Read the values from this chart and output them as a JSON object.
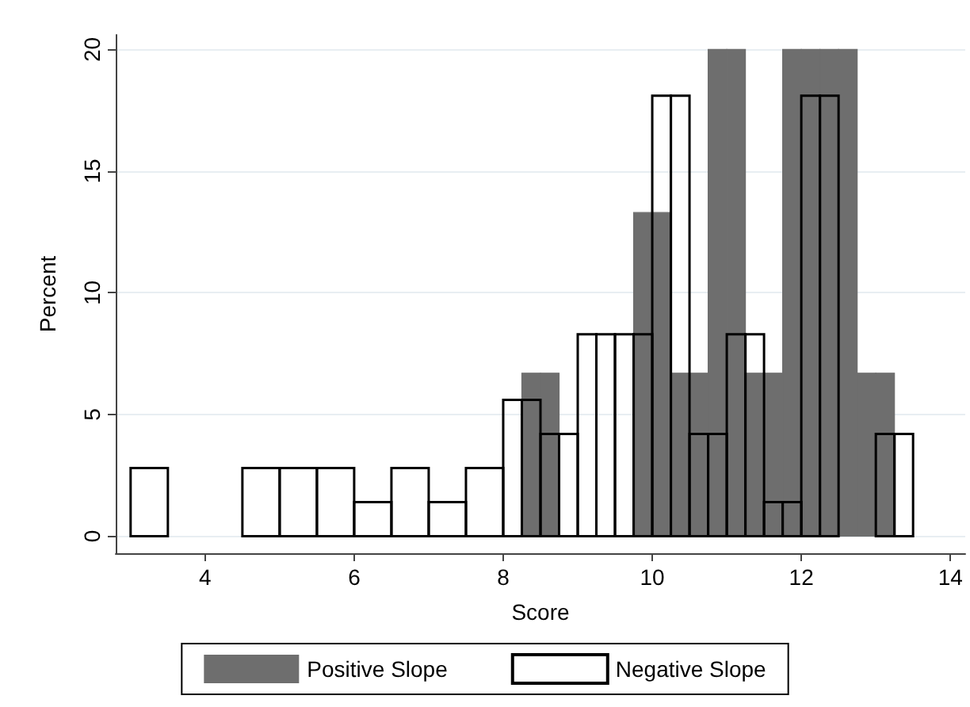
{
  "chart_data": {
    "type": "histogram",
    "xlabel": "Score",
    "ylabel": "Percent",
    "xlim": [
      2.8,
      14.2
    ],
    "xticks": [
      4,
      6,
      8,
      10,
      12,
      14
    ],
    "ylim": [
      -0.7,
      20.6
    ],
    "yticks": [
      0,
      5,
      10,
      15,
      20
    ],
    "grid": "y",
    "legend": "bottom",
    "bins": [
      3,
      3.5,
      4.5,
      5,
      5.5,
      6,
      6.5,
      7,
      7.5,
      8,
      8.25,
      8.5,
      8.75,
      9,
      9.25,
      9.5,
      9.75,
      10,
      10.25,
      10.5,
      10.75,
      11,
      11.25,
      11.5,
      11.75,
      12,
      12.25,
      12.5,
      12.75,
      13,
      13.25,
      13.5
    ],
    "series": [
      {
        "name": "Positive Slope",
        "color": "#6e6e6e",
        "values": [
          null,
          null,
          null,
          null,
          null,
          null,
          null,
          null,
          null,
          null,
          6.7,
          6.7,
          0,
          0,
          0,
          0,
          13.3,
          13.3,
          6.7,
          6.7,
          20,
          20,
          6.7,
          6.7,
          20,
          20,
          20,
          20,
          6.7,
          6.7,
          null
        ]
      },
      {
        "name": "Negative Slope",
        "color": "#000000",
        "values": [
          2.8,
          0,
          2.8,
          2.8,
          2.8,
          1.4,
          2.8,
          1.4,
          2.8,
          5.6,
          5.6,
          4.2,
          4.2,
          8.3,
          8.3,
          8.3,
          8.3,
          18.1,
          18.1,
          4.2,
          4.2,
          8.3,
          8.3,
          1.4,
          1.4,
          18.1,
          18.1,
          0,
          0,
          4.2,
          4.2
        ]
      }
    ]
  }
}
